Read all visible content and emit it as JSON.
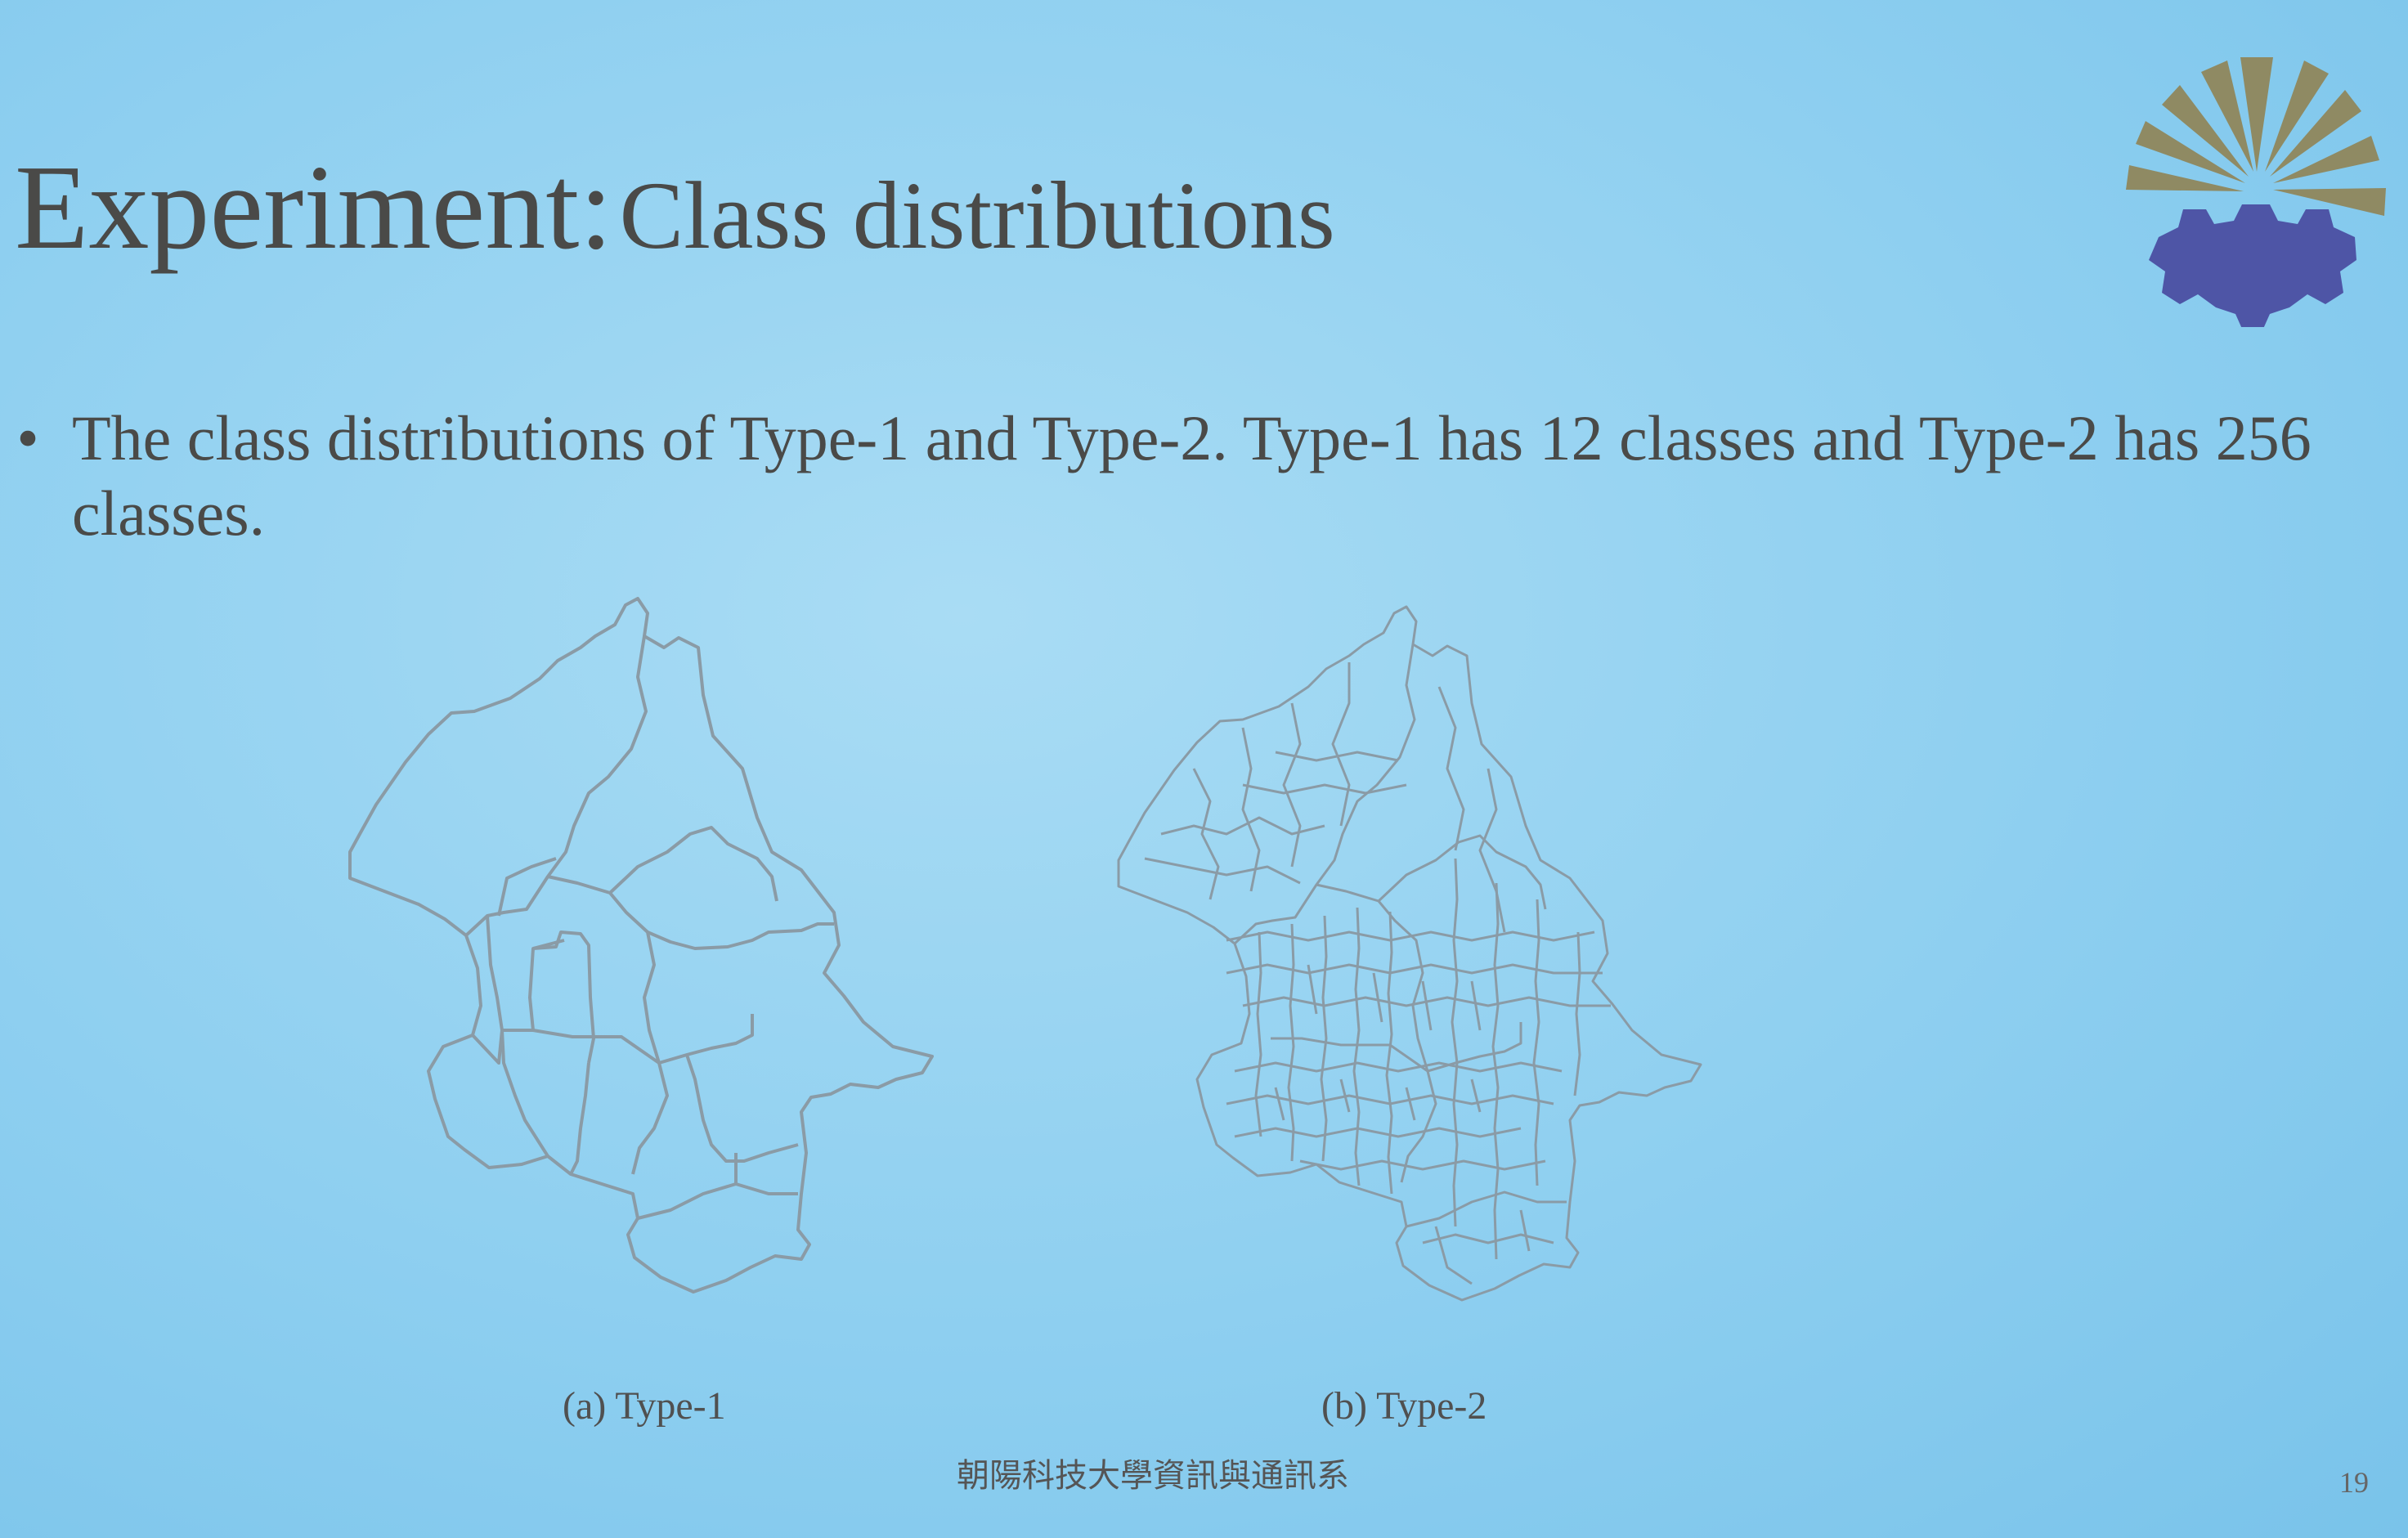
{
  "slide": {
    "title_strong": "Experiment:",
    "title_rest": "Class distributions",
    "bullet": "The class distributions of Type-1 and Type-2. Type-1 has 12 classes and Type-2 has  256 classes.",
    "captions": {
      "a": "(a) Type-1",
      "b": "(b) Type-2"
    },
    "footer": "朝陽科技大學資訊與通訊系",
    "page_number": "19"
  },
  "colors": {
    "logo_rays": "#8f8a63",
    "logo_gear": "#4e55a6",
    "map_stroke": "#8a9ba6"
  }
}
